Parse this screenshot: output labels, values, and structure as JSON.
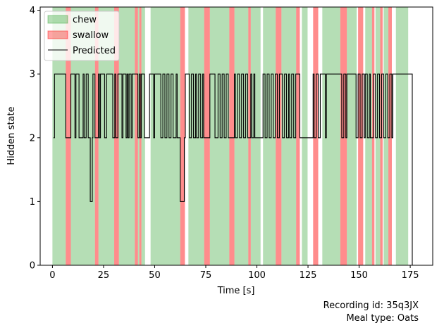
{
  "chart_data": {
    "type": "line",
    "xlabel": "Time [s]",
    "ylabel": "Hidden state",
    "xlim": [
      -6,
      186
    ],
    "ylim": [
      0,
      4.05
    ],
    "x_ticks": [
      0,
      25,
      50,
      75,
      100,
      125,
      150,
      175
    ],
    "y_ticks": [
      0,
      1,
      2,
      3,
      4
    ],
    "legend_position": "upper-left",
    "legend": [
      {
        "label": "chew",
        "kind": "patch",
        "color": "#2ca02c"
      },
      {
        "label": "swallow",
        "kind": "patch",
        "color": "#ff0000"
      },
      {
        "label": "Predicted",
        "kind": "line",
        "color": "#000000"
      }
    ],
    "chew_intervals": [
      [
        0.0,
        6.5
      ],
      [
        9.0,
        20.8
      ],
      [
        22.5,
        30.2
      ],
      [
        32.5,
        40.3
      ],
      [
        41.8,
        42.5
      ],
      [
        43.5,
        45.3
      ],
      [
        48.0,
        62.5
      ],
      [
        66.5,
        74.2
      ],
      [
        77.0,
        86.5
      ],
      [
        89.0,
        95.8
      ],
      [
        97.0,
        101.8
      ],
      [
        103.0,
        109.2
      ],
      [
        112.0,
        119.2
      ],
      [
        122.0,
        124.8
      ],
      [
        132.0,
        140.8
      ],
      [
        144.0,
        148.8
      ],
      [
        153.0,
        156.3
      ],
      [
        158.0,
        160.3
      ],
      [
        162.0,
        164.3
      ],
      [
        168.0,
        174.0
      ]
    ],
    "swallow_intervals": [
      [
        6.5,
        9.0
      ],
      [
        20.8,
        22.5
      ],
      [
        30.2,
        32.5
      ],
      [
        40.3,
        41.8
      ],
      [
        42.5,
        43.5
      ],
      [
        62.5,
        64.8
      ],
      [
        74.2,
        77.0
      ],
      [
        86.5,
        89.0
      ],
      [
        95.8,
        97.0
      ],
      [
        109.2,
        112.0
      ],
      [
        119.2,
        121.0
      ],
      [
        127.5,
        130.0
      ],
      [
        140.8,
        144.0
      ],
      [
        149.5,
        152.0
      ],
      [
        156.3,
        157.5
      ],
      [
        160.3,
        161.5
      ],
      [
        164.3,
        166.0
      ]
    ],
    "predicted": {
      "name": "Predicted",
      "color": "#000000",
      "t": [
        0.5,
        1.0,
        5.5,
        6.5,
        8.0,
        9.0,
        11.0,
        11.5,
        13.0,
        14.5,
        15.0,
        15.5,
        16.5,
        17.5,
        18.5,
        18.8,
        19.5,
        19.8,
        20.3,
        20.8,
        22.5,
        23.0,
        23.5,
        24.5,
        25.5,
        26.0,
        26.5,
        28.5,
        29.5,
        30.5,
        31.0,
        32.0,
        33.0,
        34.0,
        34.5,
        36.0,
        36.5,
        37.0,
        37.5,
        38.5,
        39.0,
        39.5,
        41.8,
        42.5,
        43.0,
        43.5,
        45.0,
        47.5,
        48.5,
        49.5,
        50.0,
        52.0,
        53.0,
        54.0,
        55.0,
        56.0,
        57.0,
        58.0,
        59.0,
        60.5,
        61.0,
        62.5,
        64.5,
        65.0,
        66.0,
        67.0,
        68.0,
        69.0,
        70.0,
        70.5,
        71.5,
        72.5,
        73.5,
        74.0,
        76.0,
        77.0,
        79.5,
        80.5,
        81.0,
        82.0,
        83.0,
        84.0,
        85.0,
        86.0,
        89.0,
        89.5,
        90.5,
        91.5,
        92.5,
        93.5,
        94.5,
        95.5,
        97.0,
        97.5,
        98.5,
        99.0,
        103.0,
        104.0,
        105.0,
        106.0,
        107.0,
        108.0,
        109.0,
        110.0,
        111.0,
        112.5,
        113.5,
        114.5,
        115.5,
        116.0,
        117.0,
        118.0,
        119.0,
        121.0,
        127.5,
        128.0,
        129.0,
        130.0,
        131.0,
        132.0,
        133.5,
        134.0,
        139.0,
        140.0,
        141.5,
        142.5,
        143.5,
        144.0,
        148.0,
        148.5,
        149.5,
        150.5,
        151.5,
        152.5,
        153.0,
        154.0,
        155.0,
        155.5,
        157.0,
        158.0,
        159.0,
        160.0,
        161.0,
        162.0,
        163.0,
        164.0,
        165.0,
        166.0,
        166.5,
        170.0,
        175.0,
        176.0
      ],
      "y": [
        2,
        3,
        3,
        2,
        2,
        3,
        2,
        3,
        2,
        2,
        3,
        2,
        3,
        2,
        1,
        1,
        2,
        3,
        3,
        2,
        3,
        2,
        3,
        3,
        2,
        2,
        3,
        3,
        2,
        3,
        2,
        3,
        3,
        2,
        3,
        2,
        3,
        2,
        3,
        2,
        3,
        3,
        2,
        3,
        2,
        3,
        2,
        3,
        3,
        2,
        3,
        3,
        2,
        3,
        2,
        3,
        2,
        3,
        2,
        3,
        2,
        1,
        2,
        3,
        3,
        2,
        3,
        2,
        3,
        2,
        3,
        2,
        3,
        2,
        2,
        3,
        2,
        2,
        3,
        2,
        3,
        2,
        3,
        2,
        3,
        2,
        3,
        2,
        3,
        2,
        3,
        2,
        3,
        2,
        3,
        2,
        3,
        2,
        3,
        2,
        3,
        2,
        3,
        2,
        3,
        2,
        3,
        2,
        3,
        2,
        3,
        2,
        3,
        2,
        3,
        2,
        3,
        2,
        3,
        3,
        2,
        3,
        3,
        3,
        2,
        3,
        2,
        3,
        3,
        2,
        3,
        2,
        3,
        2,
        3,
        2,
        3,
        2,
        3,
        2,
        3,
        2,
        3,
        2,
        3,
        2,
        3,
        2,
        3,
        3,
        3,
        0
      ]
    }
  },
  "caption": {
    "recording_id": "Recording id: 35q3JX",
    "meal_type": "Meal type: Oats"
  }
}
